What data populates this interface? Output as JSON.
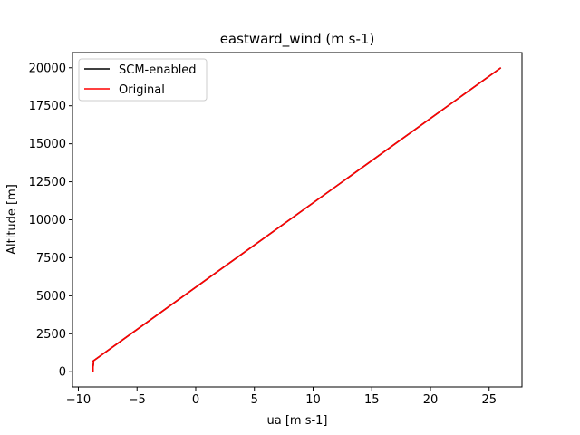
{
  "chart_data": {
    "type": "line",
    "title": "eastward_wind (m s-1)",
    "xlabel": "ua [m s-1]",
    "ylabel": "Altitude [m]",
    "xlim": [
      -10.5,
      27.8
    ],
    "ylim": [
      -1000,
      21000
    ],
    "xticks": [
      -10,
      -5,
      0,
      5,
      10,
      15,
      20,
      25
    ],
    "yticks": [
      0,
      2500,
      5000,
      7500,
      10000,
      12500,
      15000,
      17500,
      20000
    ],
    "xtick_labels": [
      "−10",
      "−5",
      "0",
      "5",
      "10",
      "15",
      "20",
      "25"
    ],
    "ytick_labels": [
      "0",
      "2500",
      "5000",
      "7500",
      "10000",
      "12500",
      "15000",
      "17500",
      "20000"
    ],
    "grid": false,
    "legend": "upper left",
    "series": [
      {
        "name": "SCM-enabled",
        "color": "#000000",
        "x": [
          -8.75,
          -8.75,
          -8.7,
          -8.75,
          26.0
        ],
        "y": [
          0,
          300,
          650,
          700,
          20000
        ]
      },
      {
        "name": "Original",
        "color": "#ff0000",
        "x": [
          -8.75,
          -8.75,
          -8.7,
          -8.75,
          26.0
        ],
        "y": [
          0,
          300,
          650,
          700,
          20000
        ]
      }
    ]
  }
}
